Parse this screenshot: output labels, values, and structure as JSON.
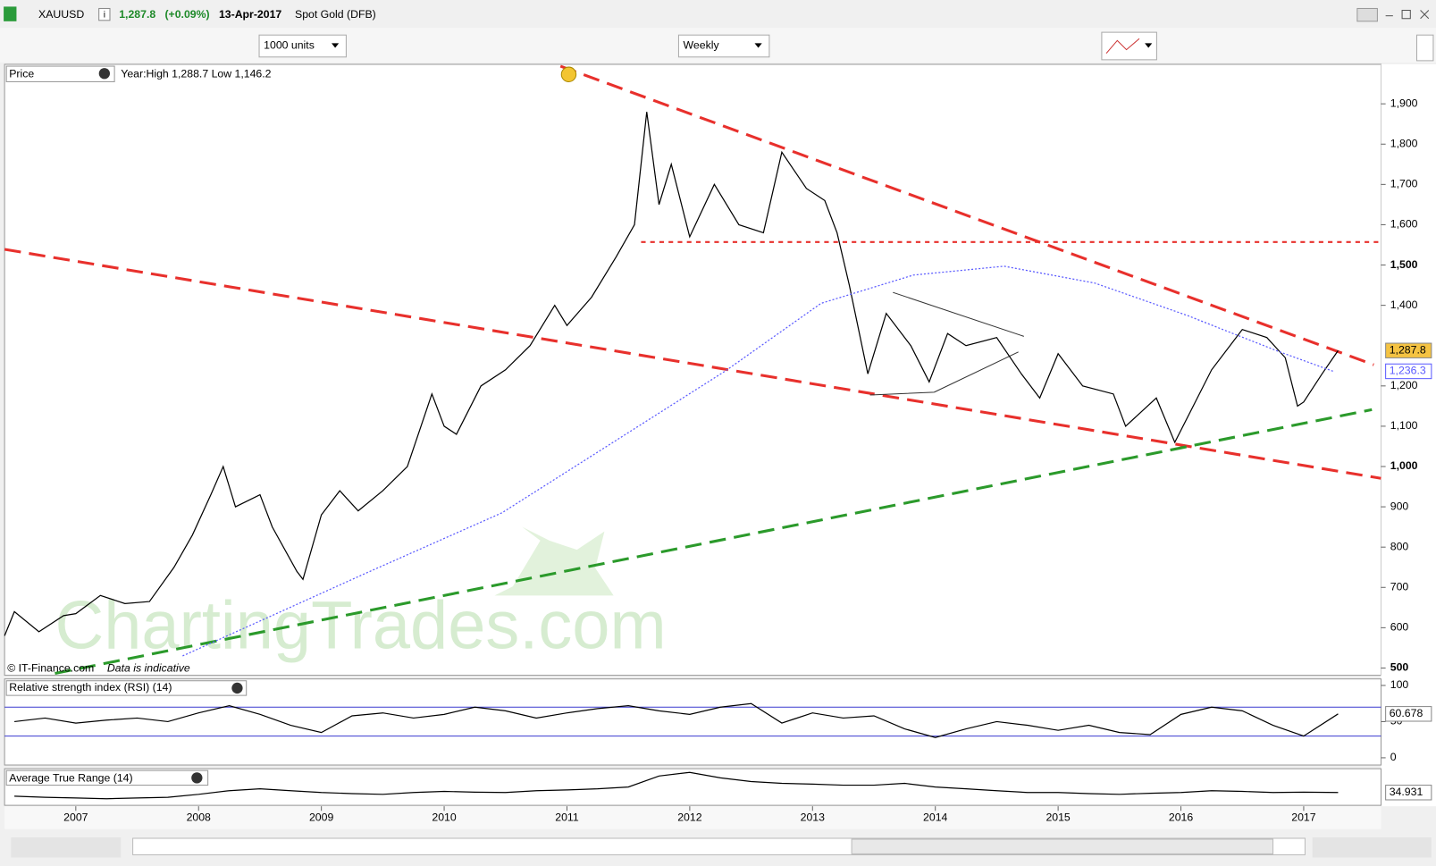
{
  "header": {
    "symbol": "XAUUSD",
    "info": "i",
    "price": "1,287.8",
    "change": "(+0.09%)",
    "date": "13-Apr-2017",
    "name": "Spot Gold (DFB)"
  },
  "controls": {
    "units": "1000 units",
    "period": "Weekly"
  },
  "source": {
    "copyright": "© IT-Finance.com",
    "disclaimer": "Data is indicative"
  },
  "watermark": "ChartingTrades.com",
  "chart_data": [
    {
      "type": "line",
      "title": "Price",
      "subtitle": "Year:High 1,288.7 Low 1,146.2",
      "x": [
        2006.42,
        2006.5,
        2006.7,
        2006.9,
        2007.0,
        2007.2,
        2007.4,
        2007.6,
        2007.8,
        2007.95,
        2008.1,
        2008.2,
        2008.3,
        2008.5,
        2008.6,
        2008.8,
        2008.85,
        2009.0,
        2009.15,
        2009.3,
        2009.5,
        2009.7,
        2009.9,
        2010.0,
        2010.1,
        2010.3,
        2010.5,
        2010.7,
        2010.9,
        2011.0,
        2011.2,
        2011.4,
        2011.55,
        2011.65,
        2011.75,
        2011.85,
        2012.0,
        2012.2,
        2012.4,
        2012.6,
        2012.75,
        2012.95,
        2013.1,
        2013.2,
        2013.3,
        2013.45,
        2013.6,
        2013.8,
        2013.95,
        2014.1,
        2014.25,
        2014.5,
        2014.7,
        2014.85,
        2015.0,
        2015.2,
        2015.45,
        2015.55,
        2015.8,
        2015.95,
        2016.1,
        2016.25,
        2016.5,
        2016.7,
        2016.85,
        2016.95,
        2017.0,
        2017.15,
        2017.28
      ],
      "xlim": [
        2006.42,
        2017.63
      ],
      "xticks": [
        2007,
        2008,
        2009,
        2010,
        2011,
        2012,
        2013,
        2014,
        2015,
        2016,
        2017
      ],
      "ylim": [
        482,
        1998
      ],
      "yticks": [
        500,
        600,
        700,
        800,
        900,
        {
          "value": 1000,
          "label": "1,000"
        },
        {
          "value": 1100,
          "label": "1,100"
        },
        {
          "value": 1200,
          "label": "1,200"
        },
        {
          "value": 1400,
          "label": "1,400"
        },
        {
          "value": 1500,
          "label": "1,500"
        },
        {
          "value": 1600,
          "label": "1,600"
        },
        {
          "value": 1700,
          "label": "1,700"
        },
        {
          "value": 1800,
          "label": "1,800"
        },
        {
          "value": 1900,
          "label": "1,900"
        }
      ],
      "series": [
        {
          "color": "#000000",
          "values": [
            580,
            640,
            590,
            630,
            635,
            680,
            660,
            665,
            750,
            830,
            930,
            1000,
            900,
            930,
            850,
            740,
            720,
            880,
            940,
            890,
            940,
            1000,
            1180,
            1100,
            1080,
            1200,
            1240,
            1300,
            1400,
            1350,
            1420,
            1520,
            1600,
            1880,
            1650,
            1750,
            1570,
            1700,
            1600,
            1580,
            1780,
            1690,
            1660,
            1580,
            1450,
            1230,
            1380,
            1300,
            1210,
            1330,
            1300,
            1320,
            1230,
            1170,
            1280,
            1200,
            1180,
            1100,
            1170,
            1060,
            1150,
            1240,
            1340,
            1320,
            1270,
            1150,
            1160,
            1230,
            1287.8
          ],
          "last_label": {
            "value": 1287.8,
            "label": "1,287.8"
          },
          "label_color": "#f5c342"
        },
        {
          "color": "#5a5aff",
          "style": "dotted",
          "x": [
            2007.87,
            2009.36,
            2010.47,
            2011.22,
            2012.29,
            2013.07,
            2013.82,
            2014.56,
            2015.3,
            2016.05,
            2016.8,
            2017.24
          ],
          "values": [
            530,
            735,
            885,
            1030,
            1237,
            1405,
            1475,
            1497,
            1455,
            1375,
            1285,
            1236.3
          ],
          "last_label": {
            "value": 1236.3,
            "label": "1,236.3"
          },
          "label_color": "#ffffff"
        }
      ]
    },
    {
      "type": "line",
      "title": "Relative strength index (RSI) (14)",
      "x": [
        2006.5,
        2006.75,
        2007.0,
        2007.25,
        2007.5,
        2007.75,
        2008.0,
        2008.25,
        2008.5,
        2008.75,
        2009.0,
        2009.25,
        2009.5,
        2009.75,
        2010.0,
        2010.25,
        2010.5,
        2010.75,
        2011.0,
        2011.25,
        2011.5,
        2011.75,
        2012.0,
        2012.25,
        2012.5,
        2012.75,
        2013.0,
        2013.25,
        2013.5,
        2013.75,
        2014.0,
        2014.25,
        2014.5,
        2014.75,
        2015.0,
        2015.25,
        2015.5,
        2015.75,
        2016.0,
        2016.25,
        2016.5,
        2016.75,
        2017.0,
        2017.28
      ],
      "ylim": [
        -10,
        109
      ],
      "yticks": [
        0,
        50,
        100
      ],
      "levels": [
        30,
        70
      ],
      "series": [
        {
          "color": "#000000",
          "values": [
            50,
            55,
            48,
            52,
            55,
            50,
            62,
            72,
            60,
            45,
            35,
            58,
            62,
            55,
            60,
            70,
            65,
            55,
            62,
            68,
            72,
            65,
            60,
            70,
            75,
            48,
            62,
            55,
            58,
            40,
            28,
            40,
            50,
            45,
            38,
            45,
            35,
            32,
            60,
            70,
            65,
            45,
            30,
            60.678
          ],
          "last_label": {
            "value": 60.678,
            "label": "60.678"
          },
          "label_color": "#ffffff"
        }
      ]
    },
    {
      "type": "line",
      "title": "Average True Range (14)",
      "x": [
        2006.5,
        2006.75,
        2007.0,
        2007.25,
        2007.5,
        2007.75,
        2008.0,
        2008.25,
        2008.5,
        2008.75,
        2009.0,
        2009.25,
        2009.5,
        2009.75,
        2010.0,
        2010.25,
        2010.5,
        2010.75,
        2011.0,
        2011.25,
        2011.5,
        2011.75,
        2012.0,
        2012.25,
        2012.5,
        2012.75,
        2013.0,
        2013.25,
        2013.5,
        2013.75,
        2014.0,
        2014.25,
        2014.5,
        2014.75,
        2015.0,
        2015.25,
        2015.5,
        2015.75,
        2016.0,
        2016.25,
        2016.5,
        2016.75,
        2017.0,
        2017.28
      ],
      "ylim": [
        0,
        100
      ],
      "series": [
        {
          "color": "#000000",
          "values": [
            25,
            22,
            20,
            18,
            20,
            22,
            30,
            40,
            45,
            40,
            35,
            32,
            30,
            35,
            38,
            36,
            35,
            40,
            42,
            45,
            50,
            80,
            90,
            75,
            65,
            60,
            58,
            55,
            55,
            60,
            50,
            45,
            40,
            35,
            35,
            32,
            30,
            33,
            35,
            40,
            38,
            35,
            36,
            34.931
          ],
          "last_label": {
            "value": 34.931,
            "label": "34.931"
          },
          "label_color": "#ffffff"
        }
      ]
    }
  ]
}
